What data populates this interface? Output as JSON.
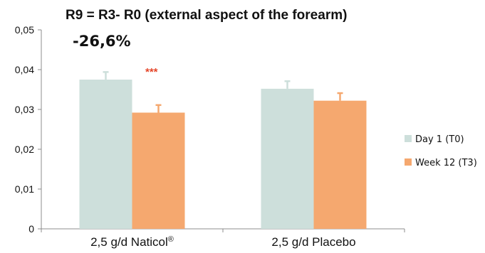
{
  "chart_data": {
    "type": "bar",
    "title": "R9 = R3- R0 (external  aspect of the forearm)",
    "categories": [
      "2,5 g/d Naticol®",
      "2,5 g/d Placebo"
    ],
    "series": [
      {
        "name": "Day 1 (T0)",
        "values": [
          0.0375,
          0.0352
        ],
        "errors": [
          0.0019,
          0.0019
        ],
        "color": "#cddfdb"
      },
      {
        "name": "Week 12 (T3)",
        "values": [
          0.0292,
          0.0322
        ],
        "errors": [
          0.0019,
          0.0019
        ],
        "color": "#f5a86f"
      }
    ],
    "ylim": [
      0,
      0.05
    ],
    "y_ticks": [
      "0",
      "0,01",
      "0,02",
      "0,03",
      "0,04",
      "0,05"
    ],
    "xlabel": "",
    "ylabel": "",
    "annotations": {
      "change": "-26,6%",
      "significance": "***"
    },
    "legend_position": "right",
    "grid": false
  }
}
